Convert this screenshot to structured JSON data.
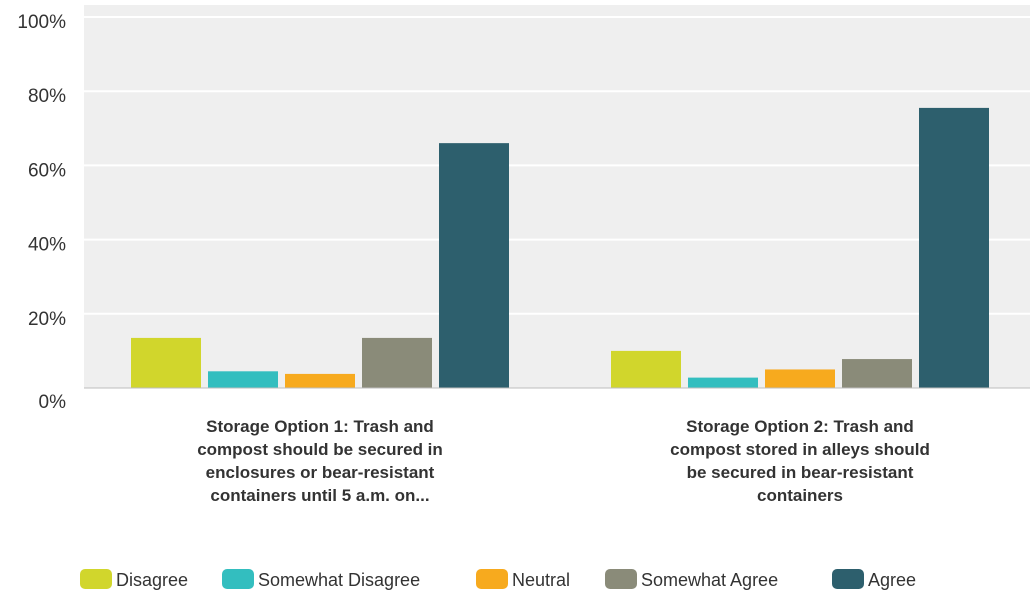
{
  "chart_data": {
    "type": "bar",
    "title": "",
    "xlabel": "",
    "ylabel": "",
    "ylim": [
      0,
      100
    ],
    "y_ticks": [
      "0%",
      "20%",
      "40%",
      "60%",
      "80%",
      "100%"
    ],
    "grid": true,
    "legend_position": "bottom",
    "categories": [
      [
        "Storage Option 1: Trash and",
        "compost should be secured in",
        "enclosures or bear-resistant",
        "containers until 5 a.m. on..."
      ],
      [
        "Storage Option 2: Trash and",
        "compost stored in alleys should",
        "be secured in bear-resistant",
        "containers"
      ]
    ],
    "series": [
      {
        "name": "Disagree",
        "color": "#d1d62c",
        "values": [
          13.5,
          10
        ]
      },
      {
        "name": "Somewhat Disagree",
        "color": "#33bebf",
        "values": [
          4.5,
          2.8
        ]
      },
      {
        "name": "Neutral",
        "color": "#f7aa1e",
        "values": [
          3.8,
          5
        ]
      },
      {
        "name": "Somewhat Agree",
        "color": "#8a8b79",
        "values": [
          13.5,
          7.8
        ]
      },
      {
        "name": "Agree",
        "color": "#2d5f6d",
        "values": [
          66,
          75.5
        ]
      }
    ]
  },
  "colors": {
    "plot_background": "#efefef",
    "gridline": "#ffffff",
    "axis": "#bdbdbd",
    "text": "#333333"
  }
}
